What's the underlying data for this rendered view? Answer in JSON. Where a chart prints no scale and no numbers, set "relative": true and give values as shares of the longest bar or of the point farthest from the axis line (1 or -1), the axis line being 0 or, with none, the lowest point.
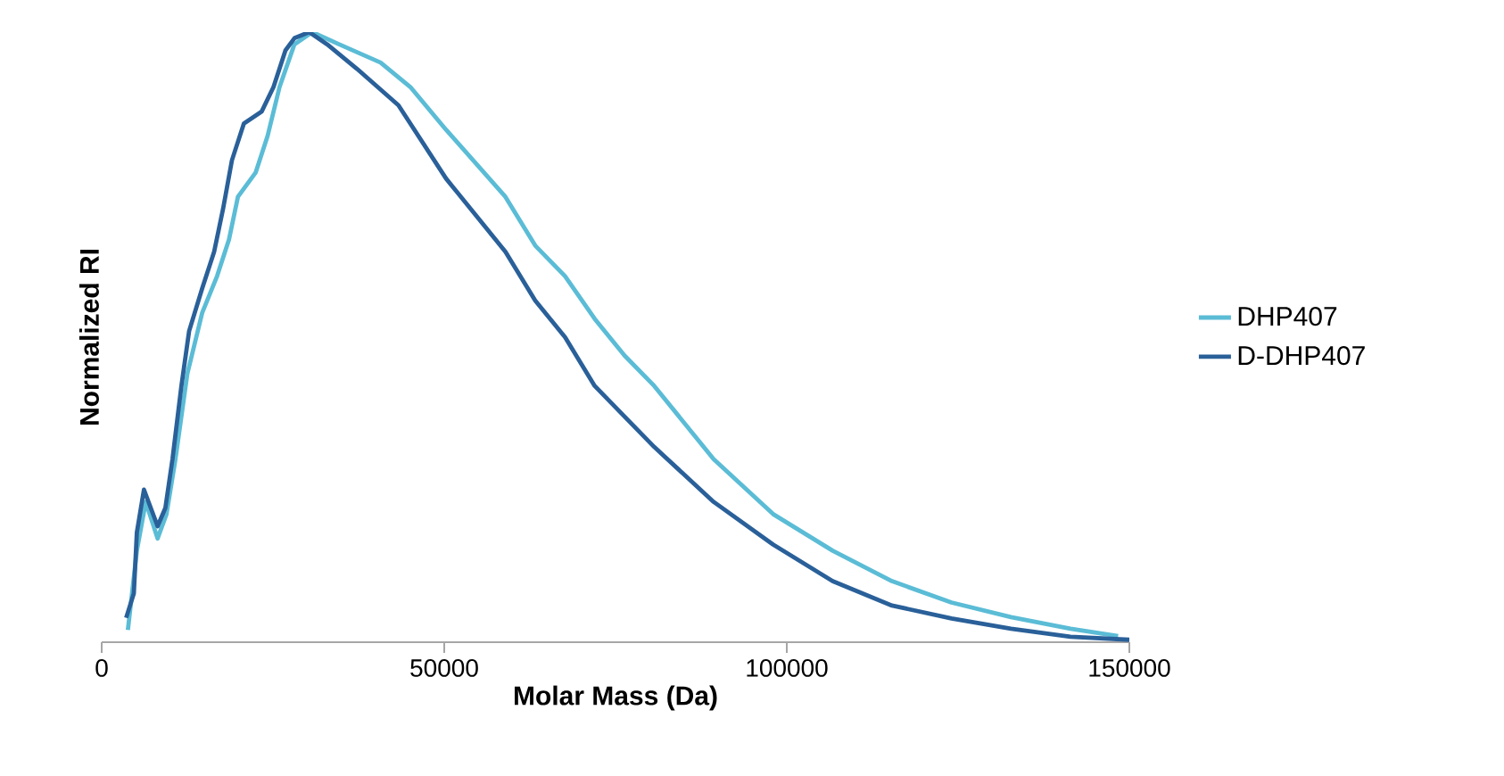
{
  "chart_data": {
    "type": "line",
    "relative": true,
    "xlabel": "Molar Mass (Da)",
    "ylabel": "Normalized  RI",
    "xlim": [
      0,
      150000
    ],
    "xticks": [
      0,
      50000,
      100000,
      150000
    ],
    "legend": "right",
    "marker": "none",
    "line_style": "solid",
    "series": [
      {
        "name": "DHP407",
        "color": "#5bbcd6",
        "x": [
          3820,
          5130,
          6430,
          8160,
          9460,
          10760,
          12500,
          14670,
          16840,
          18580,
          19880,
          22480,
          24220,
          25960,
          28130,
          30730,
          34640,
          40700,
          45050,
          50260,
          58930,
          63280,
          67630,
          71960,
          76300,
          80650,
          89320,
          98000,
          106690,
          115360,
          124040,
          132730,
          141410,
          148360
        ],
        "values": [
          0.02,
          0.15,
          0.23,
          0.17,
          0.21,
          0.3,
          0.44,
          0.54,
          0.6,
          0.66,
          0.73,
          0.77,
          0.83,
          0.91,
          0.98,
          1.0,
          0.98,
          0.95,
          0.91,
          0.84,
          0.73,
          0.65,
          0.6,
          0.53,
          0.47,
          0.42,
          0.3,
          0.21,
          0.15,
          0.1,
          0.065,
          0.041,
          0.022,
          0.01
        ]
      },
      {
        "name": "D-DHP407",
        "color": "#2a6099",
        "x": [
          3570,
          4690,
          5130,
          6170,
          8160,
          9290,
          10330,
          11630,
          12760,
          14670,
          16410,
          17710,
          19010,
          20750,
          23360,
          25080,
          26820,
          28130,
          30290,
          32900,
          37240,
          43310,
          50260,
          58930,
          63280,
          67630,
          71960,
          76300,
          80650,
          89320,
          98000,
          106690,
          115360,
          124040,
          132730,
          141410,
          150000
        ],
        "values": [
          0.04,
          0.08,
          0.18,
          0.25,
          0.19,
          0.22,
          0.3,
          0.42,
          0.51,
          0.58,
          0.64,
          0.71,
          0.79,
          0.85,
          0.87,
          0.91,
          0.97,
          0.99,
          1.0,
          0.98,
          0.94,
          0.88,
          0.76,
          0.64,
          0.56,
          0.5,
          0.42,
          0.37,
          0.32,
          0.23,
          0.16,
          0.1,
          0.06,
          0.039,
          0.022,
          0.009,
          0.004
        ]
      }
    ]
  }
}
